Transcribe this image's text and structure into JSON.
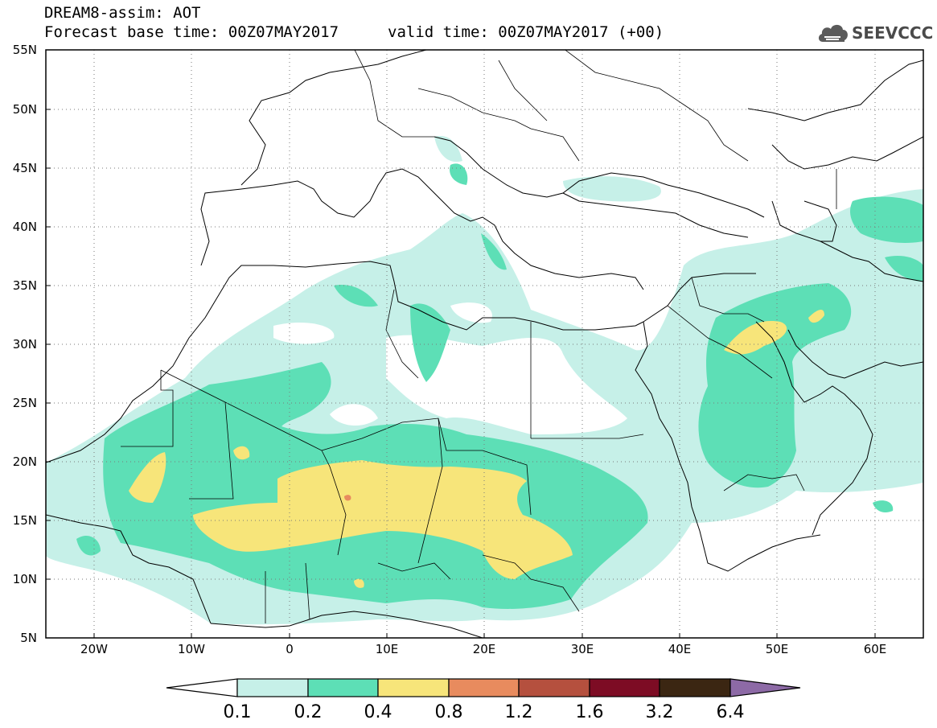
{
  "header": {
    "title": "DREAM8-assim: AOT",
    "base_time": "Forecast base time: 00Z07MAY2017",
    "valid_time": "valid time: 00Z07MAY2017 (+00)",
    "logo_text": "SEEVCCC"
  },
  "map": {
    "projection": "lat-lon",
    "lon_range": [
      -25,
      65
    ],
    "lat_range": [
      5,
      55
    ],
    "lat_labels": [
      "55N",
      "50N",
      "45N",
      "40N",
      "35N",
      "30N",
      "25N",
      "20N",
      "15N",
      "10N",
      "5N"
    ],
    "lon_labels": [
      "20W",
      "10W",
      "0",
      "10E",
      "20E",
      "30E",
      "40E",
      "50E",
      "60E"
    ],
    "gridlines": "dotted"
  },
  "legend": {
    "thresholds": [
      "0.1",
      "0.2",
      "0.4",
      "0.8",
      "1.2",
      "1.6",
      "3.2",
      "6.4"
    ],
    "colors": [
      "#ffffff",
      "#c6f0e8",
      "#5ddfb6",
      "#f7e57a",
      "#e88b5e",
      "#b5503e",
      "#7d0c24",
      "#3b2612",
      "#8d6aa6"
    ]
  }
}
